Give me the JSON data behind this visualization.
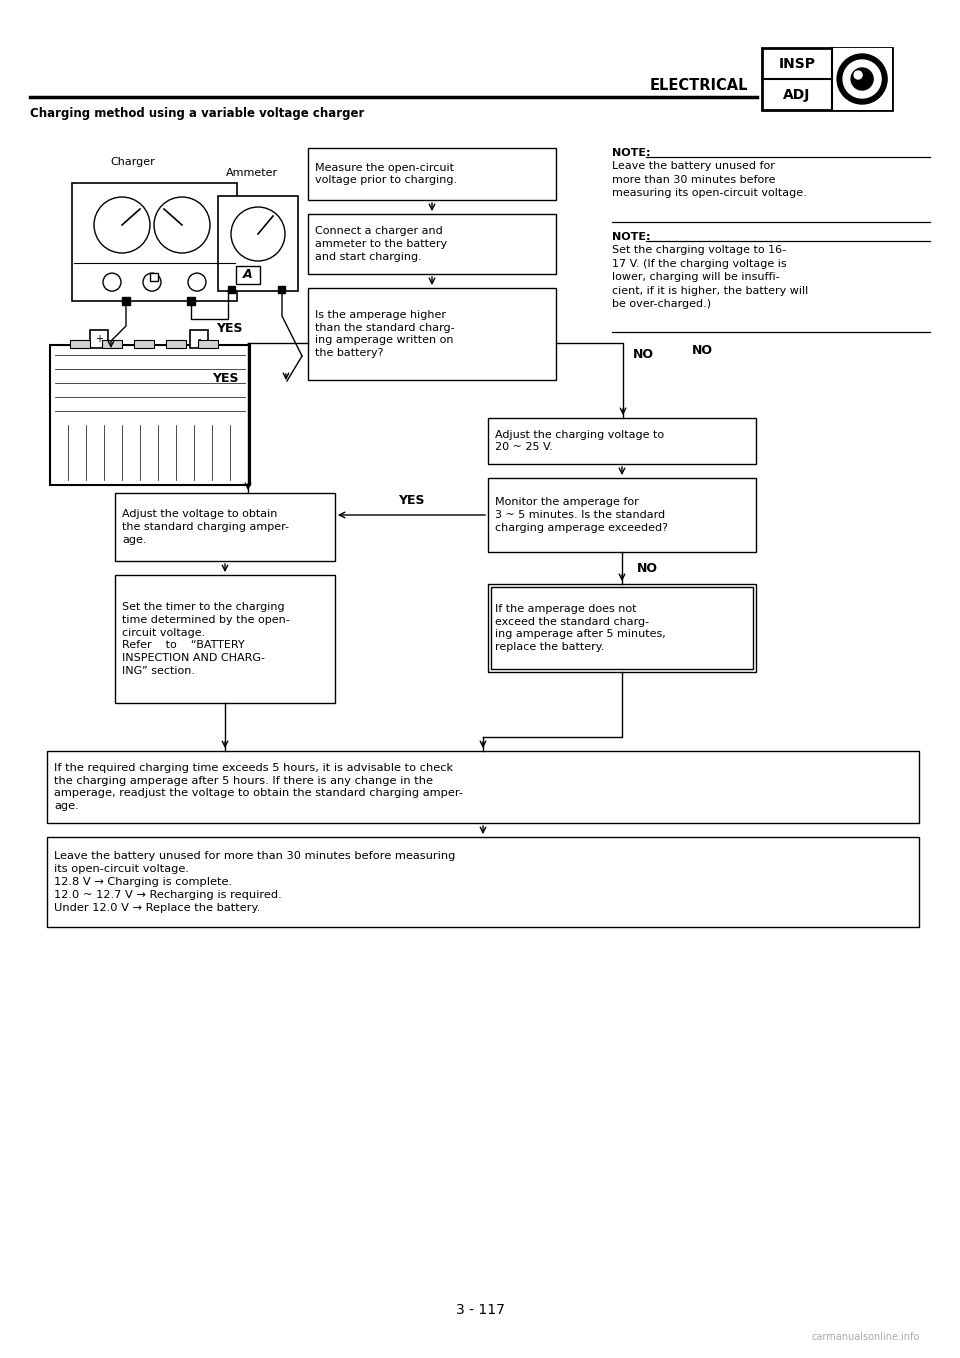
{
  "title_header": "ELECTRICAL",
  "page_label": "3 - 117",
  "section_title": "Charging method using a variable voltage charger",
  "bg_color": "#ffffff",
  "note1_title": "NOTE:",
  "note1_text": "Leave the battery unused for\nmore than 30 minutes before\nmeasuring its open-circuit voltage.",
  "note2_title": "NOTE:",
  "note2_text": "Set the charging voltage to 16-\n17 V. (If the charging voltage is\nlower, charging will be insuffi-\ncient, if it is higher, the battery will\nbe over-charged.)",
  "box1_text": "Measure the open-circuit\nvoltage prior to charging.",
  "box2_text": "Connect a charger and\nammeter to the battery\nand start charging.",
  "box3_text": "Is the amperage higher\nthan the standard charg-\ning amperage written on\nthe battery?",
  "box4_text": "Adjust the charging voltage to\n20 ~ 25 V.",
  "box5_text": "Monitor the amperage for\n3 ~ 5 minutes. Is the standard\ncharging amperage exceeded?",
  "box6_text": "Adjust the voltage to obtain\nthe standard charging amper-\nage.",
  "box7_text": "Set the timer to the charging\ntime determined by the open-\ncircuit voltage.\nRefer    to    “BATTERY\nINSPECTION AND CHARG-\nING” section.",
  "box8_text": "If the amperage does not\nexceed the standard charg-\ning amperage after 5 minutes,\nreplace the battery.",
  "box9_text": "If the required charging time exceeds 5 hours, it is advisable to check\nthe charging amperage after 5 hours. If there is any change in the\namperage, readjust the voltage to obtain the standard charging amper-\nage.",
  "box10_text": "Leave the battery unused for more than 30 minutes before measuring\nits open-circuit voltage.\n12.8 V → Charging is complete.\n12.0 ~ 12.7 V → Recharging is required.\nUnder 12.0 V → Replace the battery.",
  "yes_label": "YES",
  "no_label": "NO",
  "charger_label": "Charger",
  "ammeter_label": "Ammeter",
  "watermark": "carmanualsonline.info"
}
